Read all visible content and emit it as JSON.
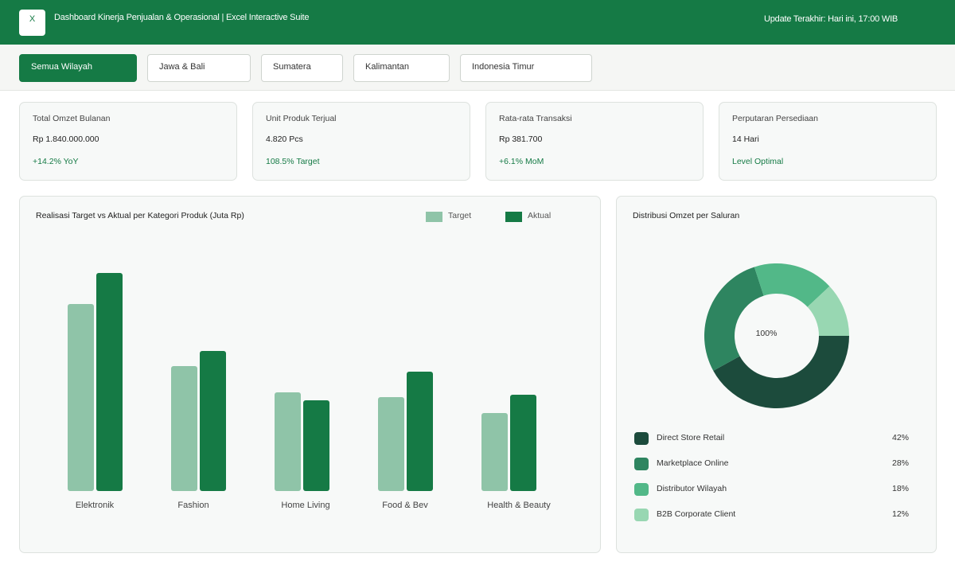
{
  "header": {
    "logo_text": "X",
    "title": "Dashboard Kinerja Penjualan & Operasional | Excel Interactive Suite",
    "last_update": "Update Terakhir: Hari ini, 17:00 WIB"
  },
  "filters": {
    "tabs": [
      {
        "label": "Semua Wilayah",
        "active": true
      },
      {
        "label": "Jawa & Bali",
        "active": false
      },
      {
        "label": "Sumatera",
        "active": false
      },
      {
        "label": "Kalimantan",
        "active": false
      },
      {
        "label": "Indonesia Timur",
        "active": false
      }
    ]
  },
  "kpis": [
    {
      "label": "Total Omzet Bulanan",
      "value": "Rp 1.840.000.000",
      "note": "+14.2% YoY"
    },
    {
      "label": "Unit Produk Terjual",
      "value": "4.820 Pcs",
      "note": "108.5% Target"
    },
    {
      "label": "Rata-rata Transaksi",
      "value": "Rp 381.700",
      "note": "+6.1% MoM"
    },
    {
      "label": "Perputaran Persediaan",
      "value": "14 Hari",
      "note": "Level Optimal"
    }
  ],
  "chart_data": [
    {
      "type": "bar",
      "title": "Realisasi Target vs Aktual per Kategori Produk (Juta Rp)",
      "categories": [
        "Elektronik",
        "Fashion",
        "Home Living",
        "Food & Bev",
        "Health & Beauty"
      ],
      "series": [
        {
          "name": "Target",
          "color": "#8fc4a8",
          "values": [
            235,
            157,
            124,
            118,
            98
          ]
        },
        {
          "name": "Aktual",
          "color": "#157a45",
          "values": [
            274,
            176,
            114,
            150,
            121
          ]
        }
      ],
      "ylim": [
        0,
        300
      ],
      "grid": false,
      "legend": "top-right"
    },
    {
      "type": "pie",
      "title": "Distribusi Omzet per Saluran",
      "center_label": "100%",
      "slices": [
        {
          "label": "Direct Store Retail",
          "value": 42,
          "display": "42%",
          "color": "#1c4b3c"
        },
        {
          "label": "Marketplace Online",
          "value": 28,
          "display": "28%",
          "color": "#2e8560"
        },
        {
          "label": "Distributor Wilayah",
          "value": 18,
          "display": "18%",
          "color": "#52b888"
        },
        {
          "label": "B2B Corporate Client",
          "value": 12,
          "display": "12%",
          "color": "#98d7b2"
        }
      ]
    }
  ]
}
